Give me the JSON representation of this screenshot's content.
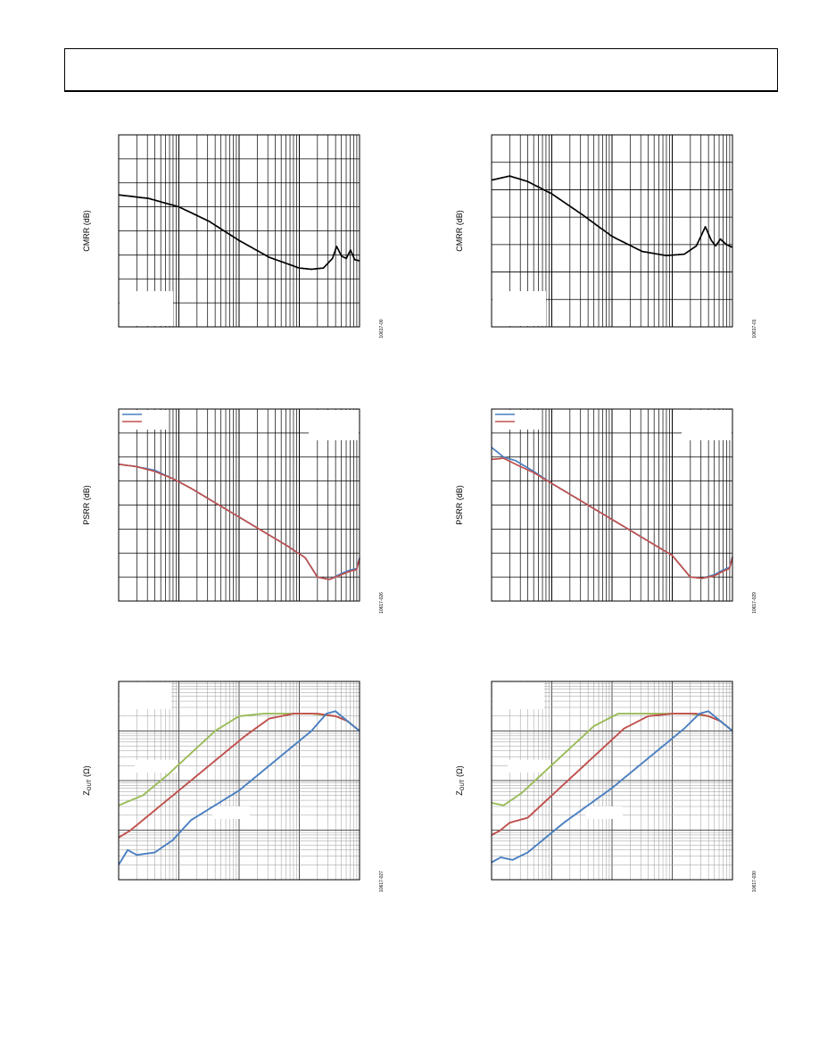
{
  "colors": {
    "frame": "#000000",
    "grid": "#000000",
    "minor_grid": "#9a9a9a",
    "cmrr_line": "#000000",
    "blue": "#4a7fc1",
    "red": "#c0504d",
    "green": "#9bbb59"
  },
  "chart_data": [
    {
      "id": "cmrr-left",
      "type": "line",
      "ylabel": "CMRR (dB)",
      "figure_id": "10617-00",
      "xscale": "log",
      "grid": true,
      "decades": 4,
      "xdomain": [
        0,
        4
      ],
      "ydomain": [
        0,
        8
      ],
      "series": [
        {
          "color_key": "cmrr_line",
          "x": [
            0,
            0.5,
            1.0,
            1.5,
            2.0,
            2.5,
            3.0,
            3.2,
            3.4,
            3.55,
            3.62,
            3.7,
            3.78,
            3.85,
            3.92,
            4.0
          ],
          "y": [
            5.5,
            5.35,
            5.0,
            4.4,
            3.6,
            2.9,
            2.45,
            2.4,
            2.45,
            2.85,
            3.35,
            2.95,
            2.85,
            3.2,
            2.8,
            2.75
          ]
        }
      ]
    },
    {
      "id": "cmrr-right",
      "type": "line",
      "ylabel": "CMRR (dB)",
      "figure_id": "10617-01",
      "xscale": "log",
      "grid": true,
      "decades": 4,
      "xdomain": [
        0,
        4
      ],
      "ydomain": [
        0,
        7
      ],
      "series": [
        {
          "color_key": "cmrr_line",
          "x": [
            0,
            0.3,
            0.6,
            1.0,
            1.5,
            2.0,
            2.5,
            2.9,
            3.2,
            3.4,
            3.55,
            3.65,
            3.72,
            3.8,
            3.9,
            4.0
          ],
          "y": [
            5.35,
            5.5,
            5.3,
            4.85,
            4.1,
            3.3,
            2.75,
            2.6,
            2.65,
            2.95,
            3.65,
            3.15,
            2.95,
            3.2,
            3.0,
            2.9
          ]
        }
      ]
    },
    {
      "id": "psrr-left",
      "type": "line",
      "ylabel": "PSRR (dB)",
      "figure_id": "10617-026",
      "xscale": "log",
      "grid": true,
      "decades": 4,
      "xdomain": [
        0,
        4
      ],
      "ydomain": [
        0,
        8
      ],
      "legend": {
        "position": "top-left",
        "color_keys": [
          "blue",
          "red"
        ]
      },
      "annotation_box": "top-right",
      "series": [
        {
          "color_key": "blue",
          "x": [
            0,
            0.3,
            0.6,
            0.9,
            1.2,
            1.6,
            2.0,
            2.4,
            2.8,
            3.1,
            3.3,
            3.5,
            3.7,
            3.85,
            3.95,
            4.0
          ],
          "y": [
            5.7,
            5.6,
            5.45,
            5.1,
            4.7,
            4.1,
            3.5,
            2.9,
            2.3,
            1.8,
            1.0,
            0.9,
            1.15,
            1.3,
            1.35,
            1.8
          ]
        },
        {
          "color_key": "red",
          "x": [
            0,
            0.3,
            0.6,
            0.9,
            1.2,
            1.6,
            2.0,
            2.4,
            2.8,
            3.1,
            3.3,
            3.5,
            3.7,
            3.85,
            3.95,
            4.0
          ],
          "y": [
            5.7,
            5.6,
            5.4,
            5.1,
            4.7,
            4.1,
            3.5,
            2.9,
            2.3,
            1.8,
            1.0,
            0.9,
            1.1,
            1.25,
            1.3,
            1.75
          ]
        }
      ]
    },
    {
      "id": "psrr-right",
      "type": "line",
      "ylabel": "PSRR (dB)",
      "figure_id": "10617-029",
      "xscale": "log",
      "grid": true,
      "decades": 4,
      "xdomain": [
        0,
        4
      ],
      "ydomain": [
        0,
        8
      ],
      "legend": {
        "position": "top-left",
        "color_keys": [
          "blue",
          "red"
        ]
      },
      "annotation_box": "top-right",
      "series": [
        {
          "color_key": "blue",
          "x": [
            0,
            0.2,
            0.4,
            0.7,
            1.0,
            1.4,
            1.8,
            2.2,
            2.6,
            3.0,
            3.3,
            3.5,
            3.7,
            3.85,
            3.95,
            4.0
          ],
          "y": [
            6.4,
            6.0,
            5.85,
            5.4,
            4.9,
            4.3,
            3.7,
            3.1,
            2.5,
            1.9,
            1.0,
            0.95,
            1.1,
            1.3,
            1.4,
            1.85
          ]
        },
        {
          "color_key": "red",
          "x": [
            0,
            0.2,
            0.4,
            0.7,
            1.0,
            1.4,
            1.8,
            2.2,
            2.6,
            3.0,
            3.3,
            3.5,
            3.7,
            3.85,
            3.95,
            4.0
          ],
          "y": [
            5.9,
            5.95,
            5.7,
            5.35,
            4.9,
            4.3,
            3.7,
            3.1,
            2.5,
            1.9,
            1.0,
            0.95,
            1.05,
            1.25,
            1.35,
            1.8
          ]
        }
      ]
    },
    {
      "id": "zout-left",
      "type": "line",
      "ylabel_main": "Z",
      "ylabel_sub": "OUT",
      "ylabel_tail": " (Ω)",
      "figure_id": "10617-027",
      "xscale": "log",
      "yscale": "log",
      "grid": true,
      "minor_grid": true,
      "decades": 4,
      "ydecades": 4,
      "xdomain": [
        0,
        4
      ],
      "ydomain": [
        0,
        4
      ],
      "annotation_boxes": [
        "upper-left",
        "mid-left",
        "lower-middle"
      ],
      "series": [
        {
          "color_key": "green",
          "x": [
            0,
            0.4,
            0.8,
            1.2,
            1.6,
            2.0,
            2.4,
            2.8,
            3.2,
            3.6,
            3.8,
            4.0
          ],
          "y": [
            1.5,
            1.7,
            2.1,
            2.55,
            3.0,
            3.3,
            3.35,
            3.35,
            3.35,
            3.3,
            3.2,
            3.0
          ]
        },
        {
          "color_key": "red",
          "x": [
            0,
            0.2,
            0.5,
            0.9,
            1.3,
            1.7,
            2.1,
            2.5,
            2.9,
            3.3,
            3.6,
            3.8,
            4.0
          ],
          "y": [
            0.85,
            1.0,
            1.3,
            1.7,
            2.1,
            2.5,
            2.9,
            3.25,
            3.35,
            3.35,
            3.3,
            3.2,
            3.0
          ]
        },
        {
          "color_key": "blue",
          "x": [
            0,
            0.15,
            0.3,
            0.6,
            0.9,
            1.2,
            1.6,
            2.0,
            2.4,
            2.8,
            3.2,
            3.45,
            3.6,
            3.8,
            4.0
          ],
          "y": [
            0.3,
            0.6,
            0.5,
            0.55,
            0.8,
            1.2,
            1.5,
            1.8,
            2.2,
            2.6,
            3.0,
            3.35,
            3.4,
            3.2,
            3.0
          ]
        }
      ]
    },
    {
      "id": "zout-right",
      "type": "line",
      "ylabel_main": "Z",
      "ylabel_sub": "OUT",
      "ylabel_tail": " (Ω)",
      "figure_id": "10617-030",
      "xscale": "log",
      "yscale": "log",
      "grid": true,
      "minor_grid": true,
      "decades": 4,
      "ydecades": 4,
      "xdomain": [
        0,
        4
      ],
      "ydomain": [
        0,
        4
      ],
      "annotation_boxes": [
        "upper-left",
        "mid-left",
        "lower-middle"
      ],
      "series": [
        {
          "color_key": "green",
          "x": [
            0,
            0.2,
            0.5,
            0.9,
            1.3,
            1.7,
            2.1,
            2.5,
            2.9,
            3.3,
            3.6,
            3.8,
            4.0
          ],
          "y": [
            1.55,
            1.5,
            1.75,
            2.2,
            2.65,
            3.1,
            3.35,
            3.35,
            3.35,
            3.35,
            3.3,
            3.2,
            3.0
          ]
        },
        {
          "color_key": "red",
          "x": [
            0,
            0.15,
            0.3,
            0.6,
            1.0,
            1.4,
            1.8,
            2.2,
            2.6,
            3.0,
            3.4,
            3.6,
            3.8,
            4.0
          ],
          "y": [
            0.9,
            1.0,
            1.15,
            1.25,
            1.7,
            2.15,
            2.6,
            3.05,
            3.3,
            3.35,
            3.35,
            3.3,
            3.2,
            3.0
          ]
        },
        {
          "color_key": "blue",
          "x": [
            0,
            0.15,
            0.35,
            0.6,
            0.9,
            1.2,
            1.6,
            2.0,
            2.4,
            2.8,
            3.2,
            3.45,
            3.6,
            3.8,
            4.0
          ],
          "y": [
            0.35,
            0.45,
            0.4,
            0.55,
            0.85,
            1.15,
            1.5,
            1.85,
            2.25,
            2.65,
            3.05,
            3.35,
            3.4,
            3.2,
            3.0
          ]
        }
      ]
    }
  ]
}
